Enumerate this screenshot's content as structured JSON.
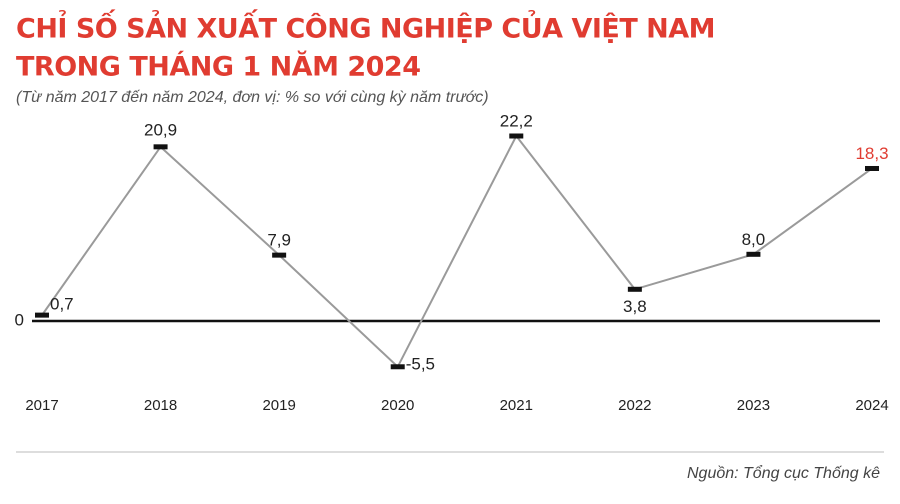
{
  "chart_data": {
    "type": "line",
    "title": [
      "CHỈ SỐ SẢN XUẤT CÔNG NGHIỆP CỦA VIỆT NAM",
      "TRONG THÁNG 1 NĂM 2024"
    ],
    "subtitle": "(Từ năm 2017 đến năm 2024, đơn vị: % so với cùng kỳ năm trước)",
    "source": "Nguồn: Tổng cục Thống kê",
    "categories": [
      "2017",
      "2018",
      "2019",
      "2020",
      "2021",
      "2022",
      "2023",
      "2024"
    ],
    "values": [
      0.7,
      20.9,
      7.9,
      -5.5,
      22.2,
      3.8,
      8.0,
      18.3
    ],
    "value_labels": [
      "0,7",
      "20,9",
      "7,9",
      "-5,5",
      "22,2",
      "3,8",
      "8,0",
      "18,3"
    ],
    "value_label_colors": [
      "#222222",
      "#222222",
      "#222222",
      "#222222",
      "#222222",
      "#222222",
      "#222222",
      "#e03c31"
    ],
    "color": "#9a9a9a",
    "marker_color": "#111111",
    "ylim": [
      -8,
      24
    ],
    "yticks": [
      0
    ]
  }
}
